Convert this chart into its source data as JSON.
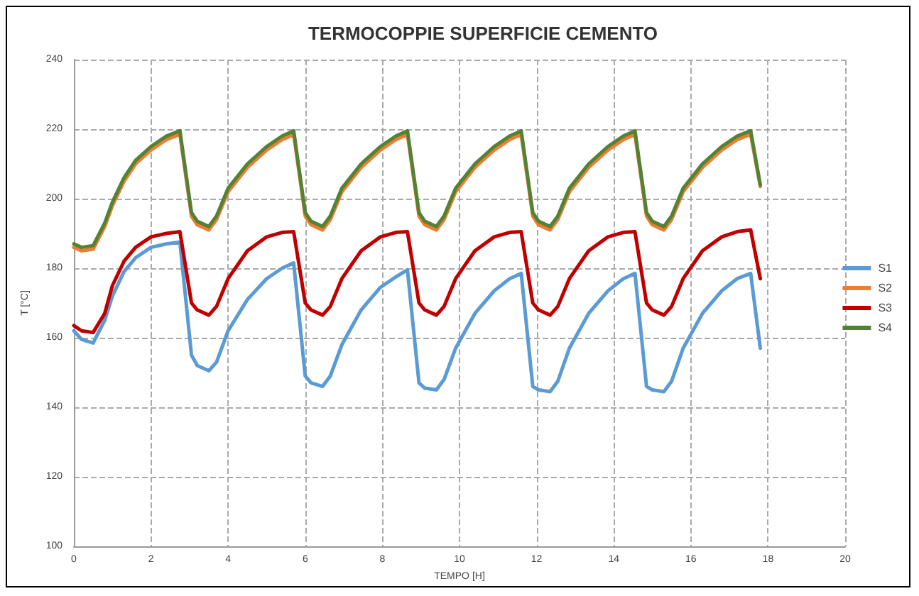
{
  "chart_data": {
    "type": "line",
    "title": "TERMOCOPPIE SUPERFICIE CEMENTO",
    "xlabel": "TEMPO [H]",
    "ylabel": "T [°C]",
    "x": [
      0,
      0.2,
      0.5,
      0.8,
      1.0,
      1.3,
      1.6,
      2.0,
      2.4,
      2.75,
      3.05,
      3.2,
      3.5,
      3.7,
      4.0,
      4.5,
      5.0,
      5.4,
      5.7,
      6.0,
      6.15,
      6.45,
      6.65,
      6.95,
      7.45,
      7.95,
      8.35,
      8.65,
      8.95,
      9.1,
      9.4,
      9.6,
      9.9,
      10.4,
      10.9,
      11.3,
      11.6,
      11.9,
      12.05,
      12.35,
      12.55,
      12.85,
      13.35,
      13.85,
      14.25,
      14.55,
      14.85,
      15.0,
      15.3,
      15.5,
      15.8,
      16.3,
      16.8,
      17.2,
      17.55,
      17.8
    ],
    "series": [
      {
        "name": "S1",
        "color": "#5b9bd5",
        "values": [
          162,
          159.5,
          158.5,
          165,
          172,
          179,
          183,
          186,
          187,
          187.5,
          155,
          152,
          150.5,
          153,
          162,
          171,
          177,
          180,
          181.5,
          149,
          147,
          146,
          149,
          158,
          168,
          174.5,
          177.5,
          179.5,
          147,
          145.5,
          145,
          148,
          157,
          167,
          173.5,
          177,
          178.5,
          146,
          145,
          144.5,
          147.5,
          157,
          167,
          173.5,
          177,
          178.5,
          146,
          145,
          144.5,
          147.5,
          157,
          167,
          173.5,
          177,
          178.5,
          157
        ]
      },
      {
        "name": "S2",
        "color": "#ed7d31",
        "values": [
          186,
          185,
          185.5,
          192,
          198,
          205,
          210,
          214,
          217,
          218.5,
          195,
          192.5,
          191,
          194,
          202,
          209,
          214,
          217,
          218.5,
          195,
          192.5,
          191,
          194,
          202,
          209,
          214,
          217,
          218.5,
          195,
          192.5,
          191,
          194,
          202,
          209,
          214,
          217,
          218.5,
          195,
          192.5,
          191,
          194,
          202,
          209,
          214,
          217,
          218.5,
          195,
          192.5,
          191,
          194,
          202,
          209,
          214,
          217,
          218.5,
          203.5
        ]
      },
      {
        "name": "S3",
        "color": "#c00000",
        "values": [
          163.5,
          162,
          161.5,
          167,
          175,
          182,
          186,
          189,
          190,
          190.5,
          170,
          168,
          166.5,
          169,
          177,
          185,
          189,
          190.3,
          190.5,
          170,
          168,
          166.5,
          169,
          177,
          185,
          189,
          190.3,
          190.5,
          170,
          168,
          166.5,
          169,
          177,
          185,
          189,
          190.3,
          190.5,
          170,
          168,
          166.5,
          169,
          177,
          185,
          189,
          190.3,
          190.5,
          170,
          168,
          166.5,
          169,
          177,
          185,
          189,
          190.5,
          191,
          177
        ]
      },
      {
        "name": "S4",
        "color": "#548235",
        "values": [
          187,
          186,
          186.5,
          193,
          199,
          206,
          211,
          215,
          218,
          219.5,
          196,
          193.5,
          192,
          195,
          203,
          210,
          215,
          218,
          219.5,
          196,
          193.5,
          192,
          195,
          203,
          210,
          215,
          218,
          219.5,
          196,
          193.5,
          192,
          195,
          203,
          210,
          215,
          218,
          219.5,
          196,
          193.5,
          192,
          195,
          203,
          210,
          215,
          218,
          219.5,
          196,
          193.5,
          192,
          195,
          203,
          210,
          215,
          218,
          219.5,
          204
        ]
      }
    ],
    "xlim": [
      0,
      20
    ],
    "xticks": [
      0,
      2,
      4,
      6,
      8,
      10,
      12,
      14,
      16,
      18,
      20
    ],
    "ylim": [
      100,
      240
    ],
    "yticks": [
      100,
      120,
      140,
      160,
      180,
      200,
      220,
      240
    ],
    "grid": true,
    "legend": "right",
    "marker": "none",
    "line_style": "solid"
  }
}
